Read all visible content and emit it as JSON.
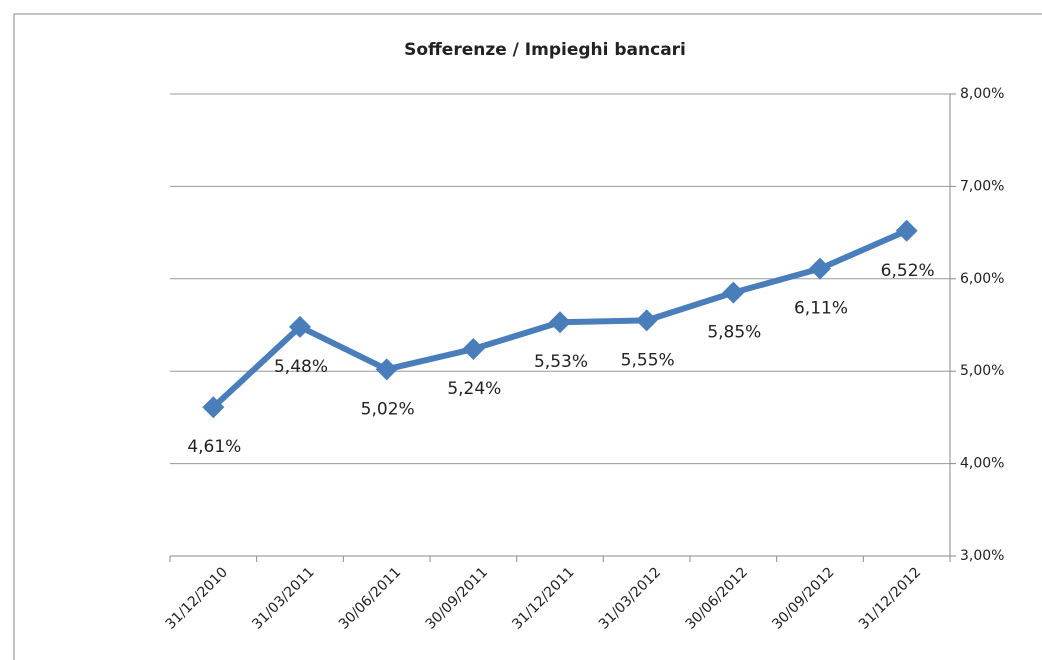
{
  "chart_data": {
    "type": "line",
    "title": "Sofferenze / Impieghi bancari",
    "categories": [
      "31/12/2010",
      "31/03/2011",
      "30/06/2011",
      "30/09/2011",
      "31/12/2011",
      "31/03/2012",
      "30/06/2012",
      "30/09/2012",
      "31/12/2012"
    ],
    "series": [
      {
        "name": "Sofferenze / Impieghi bancari",
        "color": "#4a7ebb",
        "values": [
          4.61,
          5.48,
          5.02,
          5.24,
          5.53,
          5.55,
          5.85,
          6.11,
          6.52
        ],
        "value_labels": [
          "4,61%",
          "5,48%",
          "5,02%",
          "5,24%",
          "5,53%",
          "5,55%",
          "5,85%",
          "6,11%",
          "6,52%"
        ]
      }
    ],
    "ylim": [
      3,
      8
    ],
    "yticks": [
      {
        "value": 3,
        "label": "3,00%"
      },
      {
        "value": 4,
        "label": "4,00%"
      },
      {
        "value": 5,
        "label": "5,00%"
      },
      {
        "value": 6,
        "label": "6,00%"
      },
      {
        "value": 7,
        "label": "7,00%"
      },
      {
        "value": 8,
        "label": "8,00%"
      }
    ],
    "y_axis_side": "right",
    "grid": true
  }
}
